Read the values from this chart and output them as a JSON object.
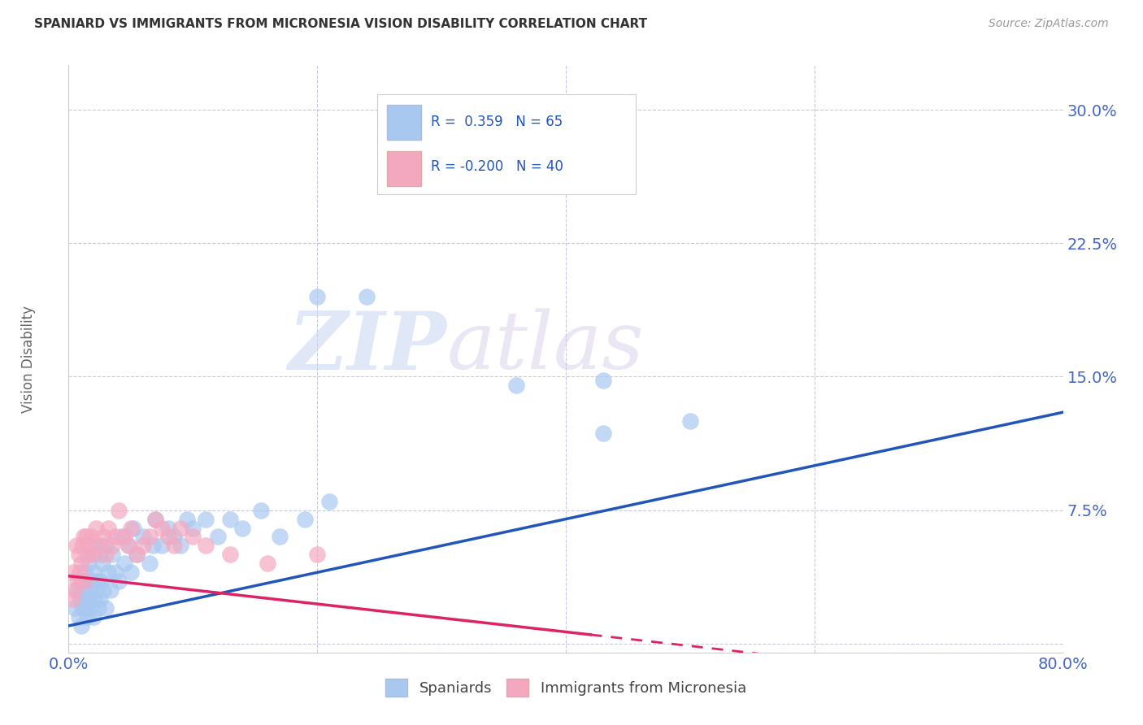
{
  "title": "SPANIARD VS IMMIGRANTS FROM MICRONESIA VISION DISABILITY CORRELATION CHART",
  "source": "Source: ZipAtlas.com",
  "ylabel": "Vision Disability",
  "xlim": [
    0.0,
    0.8
  ],
  "ylim": [
    -0.005,
    0.325
  ],
  "xticks": [
    0.0,
    0.2,
    0.4,
    0.6,
    0.8
  ],
  "yticks": [
    0.0,
    0.075,
    0.15,
    0.225,
    0.3
  ],
  "xticklabels": [
    "0.0%",
    "",
    "",
    "",
    "80.0%"
  ],
  "yticklabels": [
    "",
    "7.5%",
    "15.0%",
    "22.5%",
    "30.0%"
  ],
  "blue_color": "#a8c8f0",
  "pink_color": "#f4a8c0",
  "blue_line_color": "#2255bb",
  "pink_line_color": "#dd2266",
  "watermark_zip": "ZIP",
  "watermark_atlas": "atlas",
  "spaniards_x": [
    0.005,
    0.007,
    0.008,
    0.009,
    0.01,
    0.01,
    0.011,
    0.012,
    0.013,
    0.013,
    0.014,
    0.015,
    0.015,
    0.016,
    0.016,
    0.017,
    0.018,
    0.018,
    0.019,
    0.02,
    0.02,
    0.021,
    0.022,
    0.022,
    0.023,
    0.024,
    0.025,
    0.025,
    0.026,
    0.027,
    0.028,
    0.03,
    0.03,
    0.032,
    0.034,
    0.035,
    0.038,
    0.04,
    0.042,
    0.045,
    0.048,
    0.05,
    0.052,
    0.055,
    0.06,
    0.065,
    0.068,
    0.07,
    0.075,
    0.08,
    0.085,
    0.09,
    0.095,
    0.1,
    0.11,
    0.12,
    0.13,
    0.14,
    0.155,
    0.17,
    0.19,
    0.21,
    0.24,
    0.36,
    0.5
  ],
  "spaniards_y": [
    0.02,
    0.03,
    0.015,
    0.025,
    0.01,
    0.035,
    0.02,
    0.03,
    0.02,
    0.04,
    0.025,
    0.015,
    0.035,
    0.025,
    0.045,
    0.02,
    0.03,
    0.05,
    0.035,
    0.015,
    0.04,
    0.025,
    0.03,
    0.055,
    0.035,
    0.02,
    0.025,
    0.05,
    0.035,
    0.045,
    0.03,
    0.02,
    0.055,
    0.04,
    0.03,
    0.05,
    0.04,
    0.035,
    0.06,
    0.045,
    0.055,
    0.04,
    0.065,
    0.05,
    0.06,
    0.045,
    0.055,
    0.07,
    0.055,
    0.065,
    0.06,
    0.055,
    0.07,
    0.065,
    0.07,
    0.06,
    0.07,
    0.065,
    0.075,
    0.06,
    0.07,
    0.08,
    0.195,
    0.145,
    0.125
  ],
  "micronesia_x": [
    0.003,
    0.004,
    0.005,
    0.006,
    0.007,
    0.008,
    0.009,
    0.01,
    0.011,
    0.012,
    0.013,
    0.014,
    0.015,
    0.016,
    0.018,
    0.02,
    0.022,
    0.025,
    0.028,
    0.03,
    0.032,
    0.035,
    0.038,
    0.04,
    0.045,
    0.048,
    0.05,
    0.055,
    0.06,
    0.065,
    0.07,
    0.075,
    0.08,
    0.085,
    0.09,
    0.1,
    0.11,
    0.13,
    0.16,
    0.2
  ],
  "micronesia_y": [
    0.025,
    0.04,
    0.03,
    0.055,
    0.035,
    0.05,
    0.04,
    0.045,
    0.055,
    0.06,
    0.035,
    0.06,
    0.05,
    0.055,
    0.06,
    0.05,
    0.065,
    0.055,
    0.06,
    0.05,
    0.065,
    0.055,
    0.06,
    0.075,
    0.06,
    0.055,
    0.065,
    0.05,
    0.055,
    0.06,
    0.07,
    0.065,
    0.06,
    0.055,
    0.065,
    0.06,
    0.055,
    0.05,
    0.045,
    0.05
  ],
  "background_color": "#ffffff",
  "grid_color": "#bbbbcc",
  "title_color": "#333333",
  "tick_label_color": "#4466cc"
}
